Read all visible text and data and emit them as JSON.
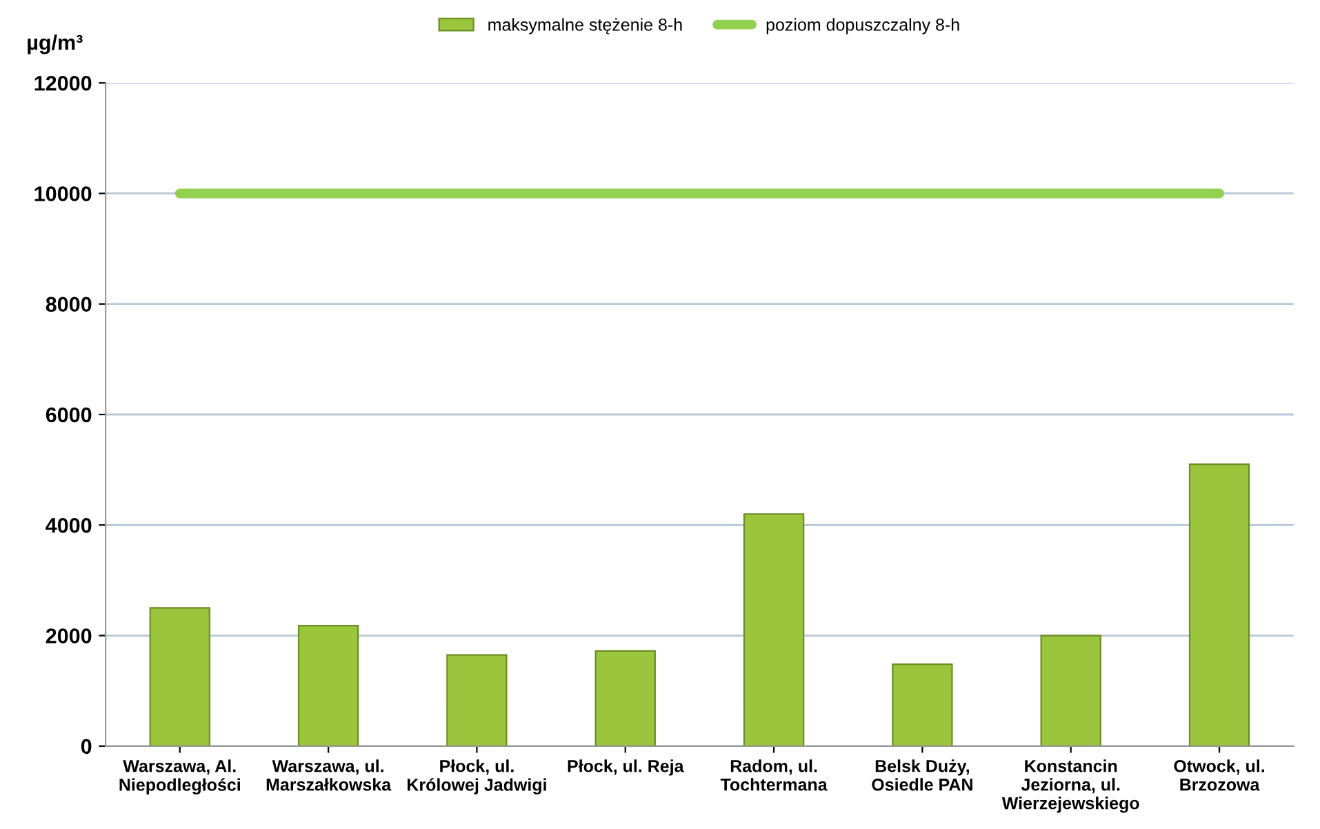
{
  "chart_data": {
    "type": "bar",
    "ylabel": "µg/m³",
    "categories": [
      "Warszawa, Al.\nNiepodległości",
      "Warszawa, ul.\nMarszałkowska",
      "Płock, ul.\nKrólowej Jadwigi",
      "Płock, ul. Reja",
      "Radom, ul.\nTochtermana",
      "Belsk Duży,\nOsiedle PAN",
      "Konstancin\nJeziorna, ul.\nWierzejewskiego",
      "Otwock, ul.\nBrzozowa"
    ],
    "series": [
      {
        "name": "maksymalne stężenie 8-h",
        "color": "#9bc53d",
        "values": [
          2500,
          2180,
          1650,
          1720,
          4200,
          1480,
          2000,
          5100
        ]
      },
      {
        "name": "poziom dopuszczalny 8-h",
        "type": "line",
        "color": "#92d050",
        "values": [
          10000,
          10000,
          10000,
          10000,
          10000,
          10000,
          10000,
          10000
        ]
      }
    ],
    "ylim": [
      0,
      12000
    ],
    "yticks": [
      0,
      2000,
      4000,
      6000,
      8000,
      10000,
      12000
    ],
    "grid": "y",
    "legend": "top"
  }
}
